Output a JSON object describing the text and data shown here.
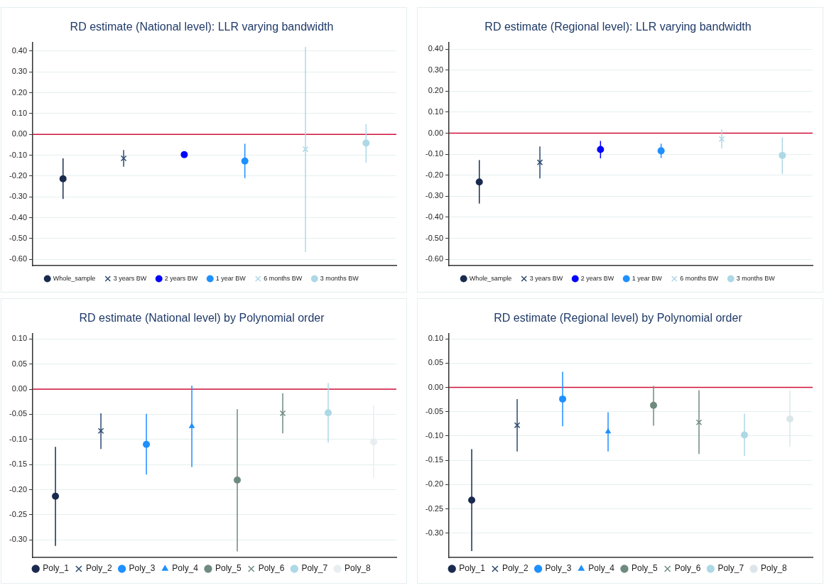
{
  "chart_data": [
    {
      "type": "scatter",
      "title": "RD estimate (National level): LLR varying bandwidth",
      "categories": [
        null,
        null,
        null,
        null,
        null,
        null
      ],
      "tick_labels": "y",
      "grid": "y",
      "legend": "bottom",
      "ylim": [
        -0.63,
        0.44
      ],
      "yticks": [
        {
          "value": 0.4,
          "label": "0.40"
        },
        {
          "value": 0.3,
          "label": "0.30"
        },
        {
          "value": 0.2,
          "label": "0.20"
        },
        {
          "value": 0.1,
          "label": "0.10"
        },
        {
          "value": 0,
          "label": "0.00"
        },
        {
          "value": -0.1,
          "label": "-0.10"
        },
        {
          "value": -0.2,
          "label": "-0.20"
        },
        {
          "value": -0.3,
          "label": "-0.30"
        },
        {
          "value": -0.4,
          "label": "-0.40"
        },
        {
          "value": -0.5,
          "label": "-0.50"
        },
        {
          "value": -0.6,
          "label": "-0.60"
        }
      ],
      "ref_lines": [
        {
          "axis": "y",
          "value": 0,
          "color": "#d0103a"
        }
      ],
      "series": [
        {
          "name": "Whole_sample",
          "color": "#1a2a4f",
          "marker": "circle",
          "values": [
            -0.213,
            null,
            null,
            null,
            null,
            null
          ],
          "errors": [
            [
              -0.31,
              -0.115
            ],
            null,
            null,
            null,
            null,
            null
          ]
        },
        {
          "name": "3 years BW",
          "color": "#2b4a70",
          "marker": "cross",
          "values": [
            null,
            -0.115,
            null,
            null,
            null,
            null
          ],
          "errors": [
            null,
            [
              -0.155,
              -0.075
            ],
            null,
            null,
            null,
            null
          ]
        },
        {
          "name": "2 years BW",
          "color": "#0000ff",
          "marker": "circle",
          "values": [
            null,
            null,
            -0.097,
            null,
            null,
            null
          ]
        },
        {
          "name": "1 year BW",
          "color": "#1e90ff",
          "marker": "circle",
          "values": [
            null,
            null,
            null,
            -0.128,
            null,
            null
          ],
          "errors": [
            null,
            null,
            null,
            [
              -0.21,
              -0.045
            ],
            null,
            null
          ]
        },
        {
          "name": "6 months BW",
          "color": "#add8e6",
          "marker": "cross",
          "values": [
            null,
            null,
            null,
            null,
            -0.071,
            null
          ],
          "errors": [
            null,
            null,
            null,
            null,
            [
              -0.565,
              0.42
            ],
            null
          ]
        },
        {
          "name": "3 months BW",
          "color": "#add8e6",
          "marker": "circle",
          "values": [
            null,
            null,
            null,
            null,
            null,
            -0.042
          ],
          "errors": [
            null,
            null,
            null,
            null,
            null,
            [
              -0.135,
              0.05
            ]
          ]
        }
      ]
    },
    {
      "type": "scatter",
      "title": "RD estimate (Regional level): LLR varying bandwidth",
      "categories": [
        null,
        null,
        null,
        null,
        null,
        null
      ],
      "tick_labels": "y",
      "grid": "y",
      "legend": "bottom",
      "ylim": [
        -0.63,
        0.43
      ],
      "yticks": [
        {
          "value": 0.4,
          "label": "0.40"
        },
        {
          "value": 0.3,
          "label": "0.30"
        },
        {
          "value": 0.2,
          "label": "0.20"
        },
        {
          "value": 0.1,
          "label": "0.10"
        },
        {
          "value": 0,
          "label": "0.00"
        },
        {
          "value": -0.1,
          "label": "-0.10"
        },
        {
          "value": -0.2,
          "label": "-0.20"
        },
        {
          "value": -0.3,
          "label": "-0.30"
        },
        {
          "value": -0.4,
          "label": "-0.40"
        },
        {
          "value": -0.5,
          "label": "-0.50"
        },
        {
          "value": -0.6,
          "label": "-0.60"
        }
      ],
      "ref_lines": [
        {
          "axis": "y",
          "value": 0,
          "color": "#d0103a"
        }
      ],
      "series": [
        {
          "name": "Whole_sample",
          "color": "#1a2a4f",
          "marker": "circle",
          "values": [
            -0.232,
            null,
            null,
            null,
            null,
            null
          ],
          "errors": [
            [
              -0.335,
              -0.128
            ],
            null,
            null,
            null,
            null,
            null
          ]
        },
        {
          "name": "3 years BW",
          "color": "#2b4a70",
          "marker": "cross",
          "values": [
            null,
            -0.139,
            null,
            null,
            null,
            null
          ],
          "errors": [
            null,
            [
              -0.215,
              -0.063
            ],
            null,
            null,
            null,
            null
          ]
        },
        {
          "name": "2 years BW",
          "color": "#0000ff",
          "marker": "circle",
          "values": [
            null,
            null,
            -0.078,
            null,
            null,
            null
          ],
          "errors": [
            null,
            null,
            [
              -0.12,
              -0.037
            ],
            null,
            null,
            null
          ]
        },
        {
          "name": "1 year BW",
          "color": "#1e90ff",
          "marker": "circle",
          "values": [
            null,
            null,
            null,
            -0.084,
            null,
            null
          ],
          "errors": [
            null,
            null,
            null,
            [
              -0.118,
              -0.05
            ],
            null,
            null
          ]
        },
        {
          "name": "6 months BW",
          "color": "#add8e6",
          "marker": "cross",
          "values": [
            null,
            null,
            null,
            null,
            -0.028,
            null
          ],
          "errors": [
            null,
            null,
            null,
            null,
            [
              -0.073,
              0.018
            ],
            null
          ]
        },
        {
          "name": "3 months BW",
          "color": "#add8e6",
          "marker": "circle",
          "values": [
            null,
            null,
            null,
            null,
            null,
            -0.106
          ],
          "errors": [
            null,
            null,
            null,
            null,
            null,
            [
              -0.194,
              -0.02
            ]
          ]
        }
      ]
    },
    {
      "type": "scatter",
      "title": "RD estimate (National level) by Polynomial order",
      "categories": [
        null,
        null,
        null,
        null,
        null,
        null,
        null,
        null
      ],
      "tick_labels": "y",
      "grid": "y",
      "legend": "bottom",
      "ylim": [
        -0.335,
        0.11
      ],
      "yticks": [
        {
          "value": 0.1,
          "label": "0.10"
        },
        {
          "value": 0.05,
          "label": "0.05"
        },
        {
          "value": 0,
          "label": "0.00"
        },
        {
          "value": -0.05,
          "label": "-0.05"
        },
        {
          "value": -0.1,
          "label": "-0.10"
        },
        {
          "value": -0.15,
          "label": "-0.15"
        },
        {
          "value": -0.2,
          "label": "-0.20"
        },
        {
          "value": -0.25,
          "label": "-0.25"
        },
        {
          "value": -0.3,
          "label": "-0.30"
        }
      ],
      "ref_lines": [
        {
          "axis": "y",
          "value": 0,
          "color": "#d0103a"
        }
      ],
      "series": [
        {
          "name": "Poly_1",
          "color": "#1a2a4f",
          "marker": "circle",
          "values": [
            -0.213,
            null,
            null,
            null,
            null,
            null,
            null,
            null
          ],
          "errors": [
            [
              -0.312,
              -0.115
            ],
            null,
            null,
            null,
            null,
            null,
            null,
            null
          ]
        },
        {
          "name": "Poly_2",
          "color": "#2b4a70",
          "marker": "cross",
          "values": [
            null,
            -0.083,
            null,
            null,
            null,
            null,
            null,
            null
          ],
          "errors": [
            null,
            [
              -0.119,
              -0.048
            ],
            null,
            null,
            null,
            null,
            null,
            null
          ]
        },
        {
          "name": "Poly_3",
          "color": "#1e90ff",
          "marker": "circle",
          "values": [
            null,
            null,
            -0.11,
            null,
            null,
            null,
            null,
            null
          ],
          "errors": [
            null,
            null,
            [
              -0.17,
              -0.049
            ],
            null,
            null,
            null,
            null,
            null
          ]
        },
        {
          "name": "Poly_4",
          "color": "#1e90ff",
          "marker": "triangle",
          "values": [
            null,
            null,
            null,
            -0.074,
            null,
            null,
            null,
            null
          ],
          "errors": [
            null,
            null,
            null,
            [
              -0.155,
              0.007
            ],
            null,
            null,
            null,
            null
          ]
        },
        {
          "name": "Poly_5",
          "color": "#6e8b7e",
          "marker": "circle",
          "values": [
            null,
            null,
            null,
            null,
            -0.181,
            null,
            null,
            null
          ],
          "errors": [
            null,
            null,
            null,
            null,
            [
              -0.323,
              -0.04
            ],
            null,
            null,
            null
          ]
        },
        {
          "name": "Poly_6",
          "color": "#6e8b7e",
          "marker": "cross",
          "values": [
            null,
            null,
            null,
            null,
            null,
            -0.048,
            null,
            null
          ],
          "errors": [
            null,
            null,
            null,
            null,
            null,
            [
              -0.088,
              -0.008
            ],
            null,
            null
          ]
        },
        {
          "name": "Poly_7",
          "color": "#add8e6",
          "marker": "circle",
          "values": [
            null,
            null,
            null,
            null,
            null,
            null,
            -0.047,
            null
          ],
          "errors": [
            null,
            null,
            null,
            null,
            null,
            null,
            [
              -0.106,
              0.012
            ],
            null
          ]
        },
        {
          "name": "Poly_8",
          "color": "#e8eef0",
          "marker": "circle",
          "values": [
            null,
            null,
            null,
            null,
            null,
            null,
            null,
            -0.105
          ],
          "errors": [
            null,
            null,
            null,
            null,
            null,
            null,
            null,
            [
              -0.177,
              -0.032
            ]
          ]
        }
      ]
    },
    {
      "type": "scatter",
      "title": "RD estimate (Regional level) by Polynomial order",
      "categories": [
        null,
        null,
        null,
        null,
        null,
        null,
        null,
        null
      ],
      "tick_labels": "y",
      "grid": "y",
      "legend": "bottom",
      "ylim": [
        -0.35,
        0.11
      ],
      "yticks": [
        {
          "value": 0.1,
          "label": "0.10"
        },
        {
          "value": 0.05,
          "label": "0.05"
        },
        {
          "value": 0,
          "label": "0.00"
        },
        {
          "value": -0.05,
          "label": "-0.05"
        },
        {
          "value": -0.1,
          "label": "-0.10"
        },
        {
          "value": -0.15,
          "label": "-0.15"
        },
        {
          "value": -0.2,
          "label": "-0.20"
        },
        {
          "value": -0.25,
          "label": "-0.25"
        },
        {
          "value": -0.3,
          "label": "-0.30"
        }
      ],
      "ref_lines": [
        {
          "axis": "y",
          "value": 0,
          "color": "#d0103a"
        }
      ],
      "series": [
        {
          "name": "Poly_1",
          "color": "#1a2a4f",
          "marker": "circle",
          "values": [
            -0.232,
            null,
            null,
            null,
            null,
            null,
            null,
            null
          ],
          "errors": [
            [
              -0.337,
              -0.127
            ],
            null,
            null,
            null,
            null,
            null,
            null,
            null
          ]
        },
        {
          "name": "Poly_2",
          "color": "#2b4a70",
          "marker": "cross",
          "values": [
            null,
            -0.078,
            null,
            null,
            null,
            null,
            null,
            null
          ],
          "errors": [
            null,
            [
              -0.132,
              -0.024
            ],
            null,
            null,
            null,
            null,
            null,
            null
          ]
        },
        {
          "name": "Poly_3",
          "color": "#1e90ff",
          "marker": "circle",
          "values": [
            null,
            null,
            -0.024,
            null,
            null,
            null,
            null,
            null
          ],
          "errors": [
            null,
            null,
            [
              -0.08,
              0.032
            ],
            null,
            null,
            null,
            null,
            null
          ]
        },
        {
          "name": "Poly_4",
          "color": "#1e90ff",
          "marker": "triangle",
          "values": [
            null,
            null,
            null,
            -0.091,
            null,
            null,
            null,
            null
          ],
          "errors": [
            null,
            null,
            null,
            [
              -0.132,
              -0.051
            ],
            null,
            null,
            null,
            null
          ]
        },
        {
          "name": "Poly_5",
          "color": "#6e8b7e",
          "marker": "circle",
          "values": [
            null,
            null,
            null,
            null,
            -0.037,
            null,
            null,
            null
          ],
          "errors": [
            null,
            null,
            null,
            null,
            [
              -0.079,
              0.003
            ],
            null,
            null,
            null
          ]
        },
        {
          "name": "Poly_6",
          "color": "#6e8b7e",
          "marker": "cross",
          "values": [
            null,
            null,
            null,
            null,
            null,
            -0.072,
            null,
            null
          ],
          "errors": [
            null,
            null,
            null,
            null,
            null,
            [
              -0.137,
              -0.006
            ],
            null,
            null
          ]
        },
        {
          "name": "Poly_7",
          "color": "#add8e6",
          "marker": "circle",
          "values": [
            null,
            null,
            null,
            null,
            null,
            null,
            -0.098,
            null
          ],
          "errors": [
            null,
            null,
            null,
            null,
            null,
            null,
            [
              -0.141,
              -0.054
            ],
            null
          ]
        },
        {
          "name": "Poly_8",
          "color": "#dce6ea",
          "marker": "circle",
          "values": [
            null,
            null,
            null,
            null,
            null,
            null,
            null,
            -0.065
          ],
          "errors": [
            null,
            null,
            null,
            null,
            null,
            null,
            null,
            [
              -0.122,
              -0.007
            ]
          ]
        }
      ]
    }
  ]
}
